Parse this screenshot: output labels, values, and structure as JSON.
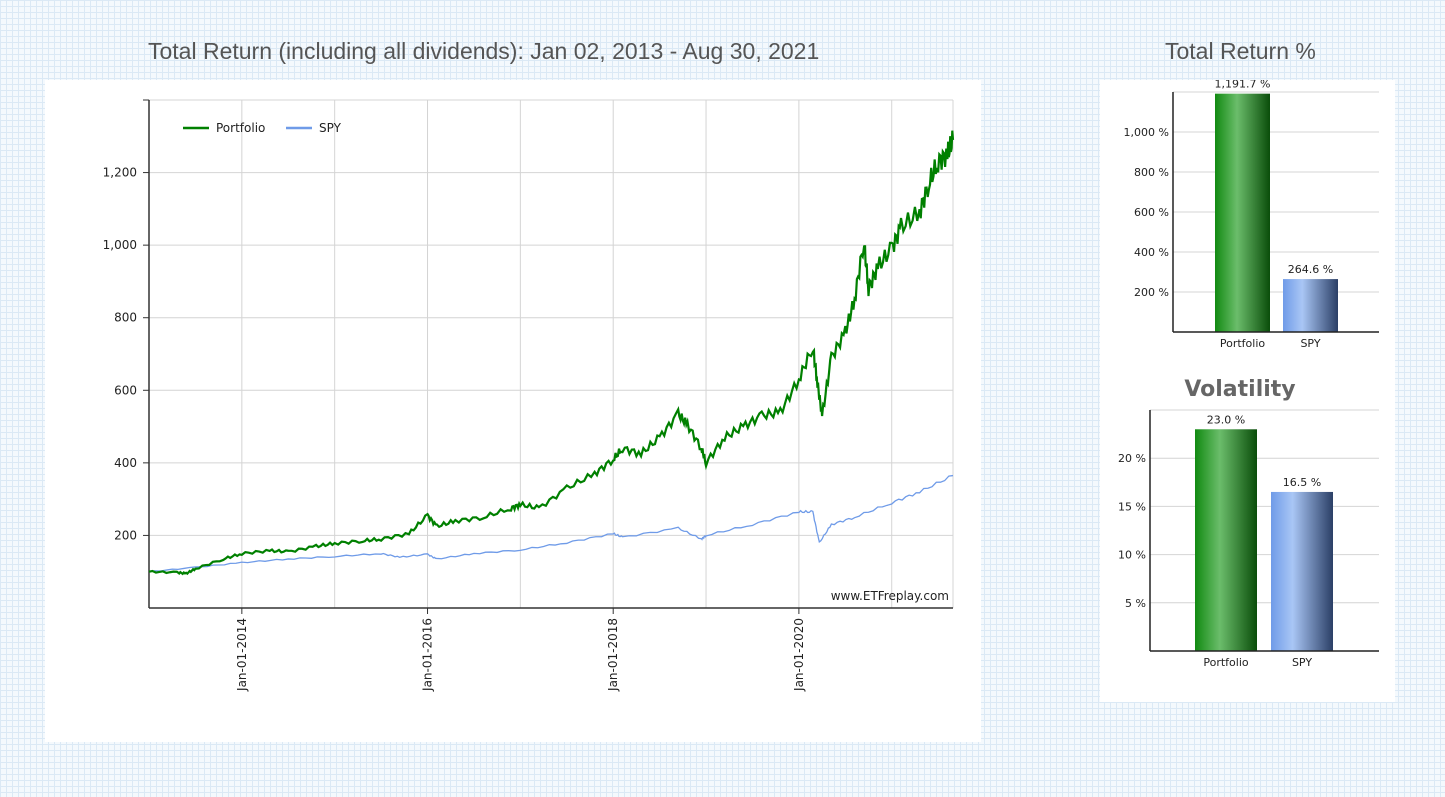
{
  "chart_data": [
    {
      "type": "line",
      "title": "Total Return (including all dividends): Jan 02, 2013 - Aug 30, 2021",
      "ylim": [
        0,
        1400
      ],
      "yticks": [
        200,
        400,
        600,
        800,
        1000,
        1200
      ],
      "ytick_labels": [
        "200",
        "400",
        "600",
        "800",
        "1,000",
        "1,200"
      ],
      "xticks": [
        2014,
        2016,
        2018,
        2020
      ],
      "xtick_labels": [
        "Jan-01-2014",
        "Jan-01-2016",
        "Jan-01-2018",
        "Jan-01-2020"
      ],
      "xlim": [
        2013.0,
        2021.66
      ],
      "grid": true,
      "legend": "top-left",
      "watermark": "www.ETFreplay.com",
      "series": [
        {
          "name": "Portfolio",
          "color": "#008000",
          "x": [
            2013.0,
            2013.3,
            2013.4,
            2013.5,
            2013.8,
            2014.0,
            2014.3,
            2014.5,
            2014.8,
            2015.0,
            2015.3,
            2015.5,
            2015.8,
            2016.0,
            2016.1,
            2016.3,
            2016.6,
            2016.9,
            2017.0,
            2017.2,
            2017.5,
            2017.8,
            2018.0,
            2018.1,
            2018.3,
            2018.5,
            2018.7,
            2018.8,
            2018.95,
            2019.0,
            2019.2,
            2019.4,
            2019.6,
            2019.8,
            2020.0,
            2020.15,
            2020.2,
            2020.25,
            2020.35,
            2020.5,
            2020.6,
            2020.7,
            2020.75,
            2020.85,
            2021.0,
            2021.1,
            2021.3,
            2021.4,
            2021.5,
            2021.6,
            2021.66
          ],
          "y": [
            100,
            98,
            95,
            108,
            135,
            150,
            158,
            155,
            170,
            178,
            185,
            190,
            205,
            255,
            225,
            240,
            250,
            275,
            285,
            275,
            330,
            370,
            410,
            440,
            425,
            470,
            535,
            505,
            440,
            400,
            470,
            500,
            530,
            540,
            630,
            720,
            620,
            530,
            690,
            760,
            850,
            1010,
            880,
            940,
            990,
            1050,
            1090,
            1170,
            1230,
            1250,
            1290
          ]
        },
        {
          "name": "SPY",
          "color": "#6f9be8",
          "x": [
            2013.0,
            2013.5,
            2014.0,
            2014.5,
            2015.0,
            2015.5,
            2015.7,
            2016.0,
            2016.1,
            2016.5,
            2017.0,
            2017.5,
            2018.0,
            2018.1,
            2018.7,
            2018.95,
            2019.0,
            2019.5,
            2020.0,
            2020.15,
            2020.22,
            2020.35,
            2020.6,
            2021.0,
            2021.3,
            2021.66
          ],
          "y": [
            100,
            112,
            125,
            135,
            142,
            150,
            140,
            148,
            135,
            150,
            160,
            180,
            205,
            195,
            220,
            190,
            200,
            230,
            265,
            265,
            180,
            230,
            250,
            290,
            320,
            365
          ]
        }
      ]
    },
    {
      "type": "bar",
      "title": "Total Return %",
      "categories": [
        "Portfolio",
        "SPY"
      ],
      "values": [
        1191.7,
        264.6
      ],
      "value_labels": [
        "1,191.7 %",
        "264.6 %"
      ],
      "ylim": [
        0,
        1200
      ],
      "yticks": [
        200,
        400,
        600,
        800,
        1000
      ],
      "ytick_labels": [
        "200 %",
        "400 %",
        "600 %",
        "800 %",
        "1,000 %"
      ],
      "colors": [
        "#1f8a1f",
        "#6f9be8"
      ]
    },
    {
      "type": "bar",
      "title": "Volatility",
      "categories": [
        "Portfolio",
        "SPY"
      ],
      "values": [
        23.0,
        16.5
      ],
      "value_labels": [
        "23.0 %",
        "16.5 %"
      ],
      "ylim": [
        0,
        25
      ],
      "yticks": [
        5,
        10,
        15,
        20
      ],
      "ytick_labels": [
        "5 %",
        "10 %",
        "15 %",
        "20 %"
      ],
      "colors": [
        "#1f8a1f",
        "#6f9be8"
      ]
    }
  ]
}
